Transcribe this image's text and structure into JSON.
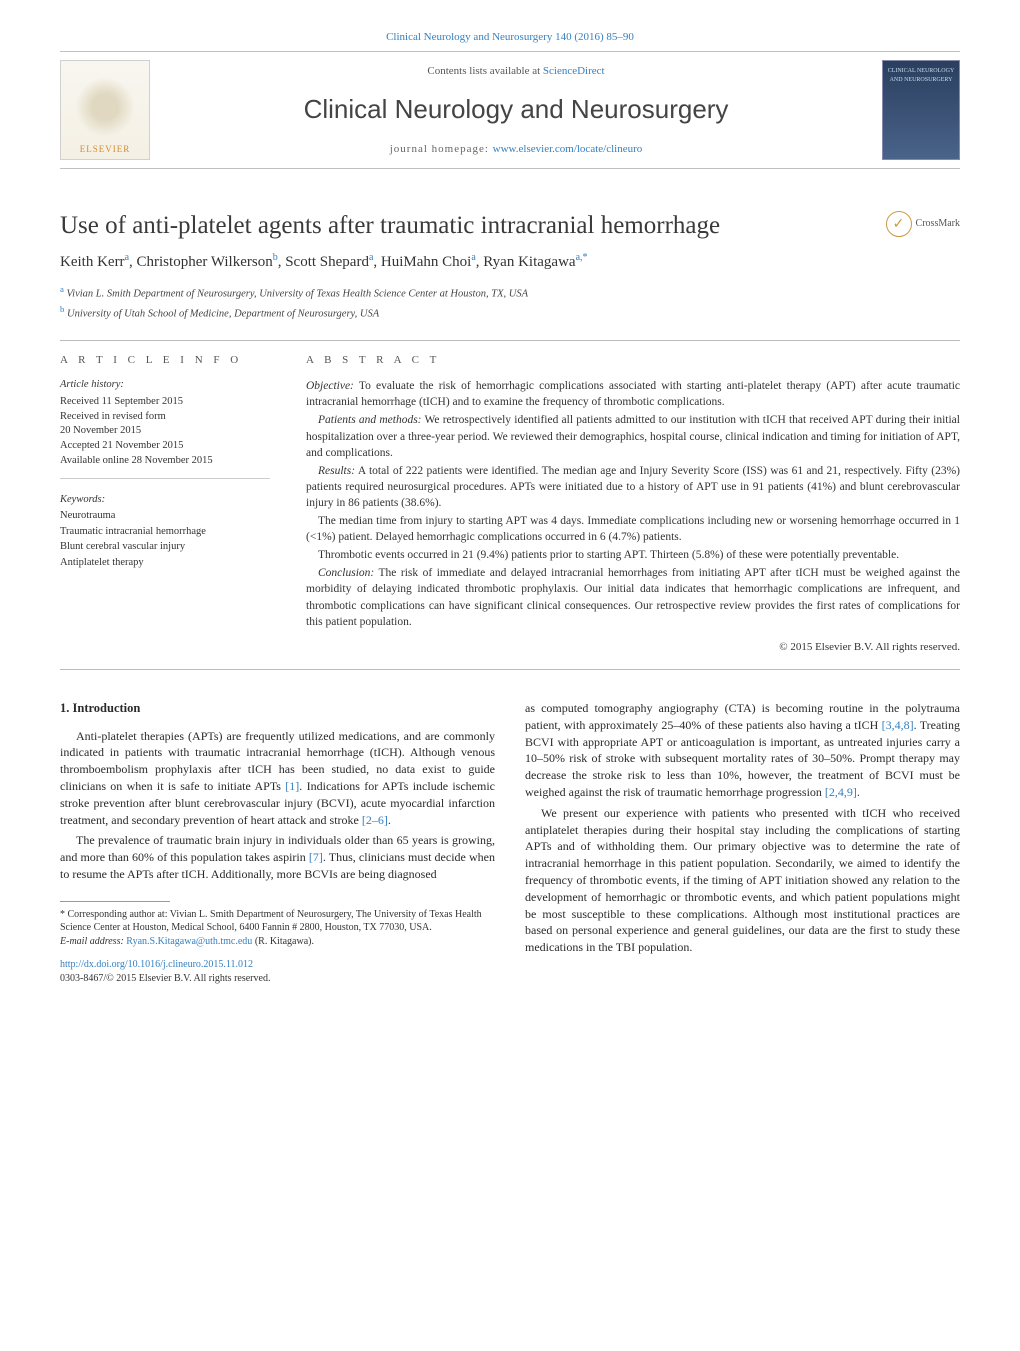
{
  "colors": {
    "link": "#3680c0",
    "text": "#3a3a3a",
    "rule": "#bbbbbb",
    "background": "#ffffff"
  },
  "top_citation": "Clinical Neurology and Neurosurgery 140 (2016) 85–90",
  "masthead": {
    "contents_prefix": "Contents lists available at ",
    "contents_link": "ScienceDirect",
    "journal": "Clinical Neurology and Neurosurgery",
    "homepage_label": "journal homepage: ",
    "homepage_url": "www.elsevier.com/locate/clineuro",
    "publisher_logo": "ELSEVIER",
    "cover_text": "CLINICAL NEUROLOGY AND NEUROSURGERY"
  },
  "article": {
    "title": "Use of anti-platelet agents after traumatic intracranial hemorrhage",
    "crossmark": "CrossMark",
    "authors_html": "Keith Kerr<sup>a</sup>, Christopher Wilkerson<sup>b</sup>, Scott Shepard<sup>a</sup>, HuiMahn Choi<sup>a</sup>, Ryan Kitagawa<sup>a,*</sup>",
    "affiliations": [
      {
        "sup": "a",
        "text": "Vivian L. Smith Department of Neurosurgery, University of Texas Health Science Center at Houston, TX, USA"
      },
      {
        "sup": "b",
        "text": "University of Utah School of Medicine, Department of Neurosurgery, USA"
      }
    ]
  },
  "article_info": {
    "heading": "A R T I C L E   I N F O",
    "history_label": "Article history:",
    "history": [
      "Received 11 September 2015",
      "Received in revised form",
      "20 November 2015",
      "Accepted 21 November 2015",
      "Available online 28 November 2015"
    ],
    "keywords_label": "Keywords:",
    "keywords": [
      "Neurotrauma",
      "Traumatic intracranial hemorrhage",
      "Blunt cerebral vascular injury",
      "Antiplatelet therapy"
    ]
  },
  "abstract": {
    "heading": "A B S T R A C T",
    "paragraphs": [
      {
        "label": "Objective:",
        "text": " To evaluate the risk of hemorrhagic complications associated with starting anti-platelet therapy (APT) after acute traumatic intracranial hemorrhage (tICH) and to examine the frequency of thrombotic complications."
      },
      {
        "label": "Patients and methods:",
        "text": " We retrospectively identified all patients admitted to our institution with tICH that received APT during their initial hospitalization over a three-year period. We reviewed their demographics, hospital course, clinical indication and timing for initiation of APT, and complications."
      },
      {
        "label": "Results:",
        "text": " A total of 222 patients were identified. The median age and Injury Severity Score (ISS) was 61 and 21, respectively. Fifty (23%) patients required neurosurgical procedures. APTs were initiated due to a history of APT use in 91 patients (41%) and blunt cerebrovascular injury in 86 patients (38.6%)."
      },
      {
        "label": "",
        "text": "The median time from injury to starting APT was 4 days. Immediate complications including new or worsening hemorrhage occurred in 1 (<1%) patient. Delayed hemorrhagic complications occurred in 6 (4.7%) patients."
      },
      {
        "label": "",
        "text": "Thrombotic events occurred in 21 (9.4%) patients prior to starting APT. Thirteen (5.8%) of these were potentially preventable."
      },
      {
        "label": "Conclusion:",
        "text": " The risk of immediate and delayed intracranial hemorrhages from initiating APT after tICH must be weighed against the morbidity of delaying indicated thrombotic prophylaxis. Our initial data indicates that hemorrhagic complications are infrequent, and thrombotic complications can have significant clinical consequences. Our retrospective review provides the first rates of complications for this patient population."
      }
    ],
    "copyright": "© 2015 Elsevier B.V. All rights reserved."
  },
  "body": {
    "section_number": "1.",
    "section_title": "Introduction",
    "p1a": "Anti-platelet therapies (APTs) are frequently utilized medications, and are commonly indicated in patients with traumatic intracranial hemorrhage (tICH). Although venous thromboembolism prophylaxis after tICH has been studied, no data exist to guide clinicians on when it is safe to initiate APTs ",
    "ref1": "[1]",
    "p1b": ". Indications for APTs include ischemic stroke prevention after blunt cerebrovascular injury (BCVI), acute myocardial infarction treatment, and secondary prevention of heart attack and stroke ",
    "ref2": "[2–6]",
    "p1c": ".",
    "p2a": "The prevalence of traumatic brain injury in individuals older than 65 years is growing, and more than 60% of this population takes aspirin ",
    "ref3": "[7]",
    "p2b": ". Thus, clinicians must decide when to resume the APTs after tICH. Additionally, more BCVIs are being diagnosed",
    "p3a": "as computed tomography angiography (CTA) is becoming routine in the polytrauma patient, with approximately 25–40% of these patients also having a tICH ",
    "ref4": "[3,4,8]",
    "p3b": ". Treating BCVI with appropriate APT or anticoagulation is important, as untreated injuries carry a 10–50% risk of stroke with subsequent mortality rates of 30–50%. Prompt therapy may decrease the stroke risk to less than 10%, however, the treatment of BCVI must be weighed against the risk of traumatic hemorrhage progression ",
    "ref5": "[2,4,9]",
    "p3c": ".",
    "p4": "We present our experience with patients who presented with tICH who received antiplatelet therapies during their hospital stay including the complications of starting APTs and of withholding them. Our primary objective was to determine the rate of intracranial hemorrhage in this patient population. Secondarily, we aimed to identify the frequency of thrombotic events, if the timing of APT initiation showed any relation to the development of hemorrhagic or thrombotic events, and which patient populations might be most susceptible to these complications. Although most institutional practices are based on personal experience and general guidelines, our data are the first to study these medications in the TBI population."
  },
  "footnote": {
    "corr": "* Corresponding author at: Vivian L. Smith Department of Neurosurgery, The University of Texas Health Science Center at Houston, Medical School, 6400 Fannin # 2800, Houston, TX 77030, USA.",
    "email_label": "E-mail address: ",
    "email": "Ryan.S.Kitagawa@uth.tmc.edu",
    "email_suffix": " (R. Kitagawa).",
    "doi": "http://dx.doi.org/10.1016/j.clineuro.2015.11.012",
    "issn_copy": "0303-8467/© 2015 Elsevier B.V. All rights reserved."
  }
}
